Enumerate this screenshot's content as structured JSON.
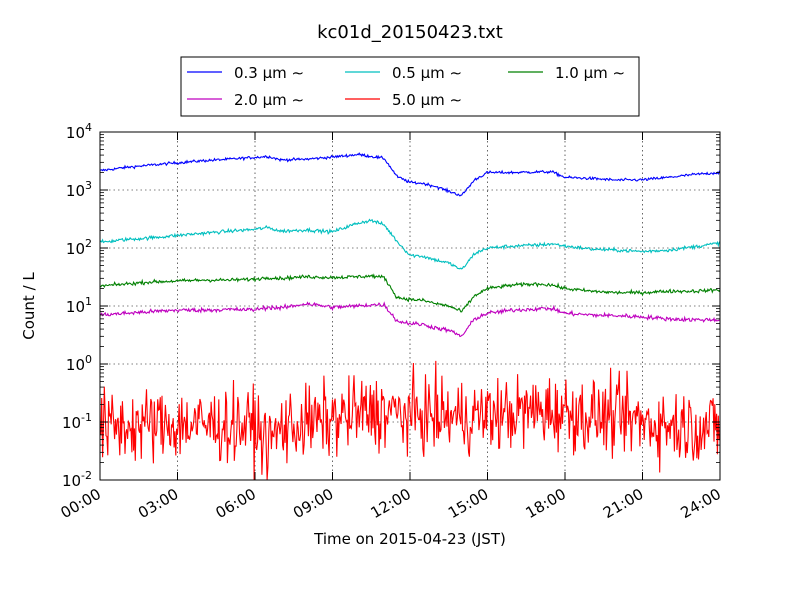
{
  "chart_data": {
    "type": "line",
    "title": "kc01d_20150423.txt",
    "xlabel": "Time on 2015-04-23 (JST)",
    "ylabel": "Count / L",
    "y_scale": "log",
    "ylim": [
      0.01,
      10000
    ],
    "xlim": [
      "00:00",
      "24:00"
    ],
    "grid": true,
    "legend_position": "top-center",
    "x_ticks": [
      "00:00",
      "03:00",
      "06:00",
      "09:00",
      "12:00",
      "15:00",
      "18:00",
      "21:00",
      "24:00"
    ],
    "y_ticks": [
      {
        "base": "10",
        "exp": "-2"
      },
      {
        "base": "10",
        "exp": "-1"
      },
      {
        "base": "10",
        "exp": "0"
      },
      {
        "base": "10",
        "exp": "1"
      },
      {
        "base": "10",
        "exp": "2"
      },
      {
        "base": "10",
        "exp": "3"
      },
      {
        "base": "10",
        "exp": "4"
      }
    ],
    "series": [
      {
        "name": "0.3 μm ∼",
        "color": "#0000ff",
        "noise": 0.012,
        "x": [
          "00:00",
          "01:00",
          "02:00",
          "03:00",
          "04:00",
          "05:00",
          "06:00",
          "06:30",
          "07:00",
          "08:00",
          "09:00",
          "10:00",
          "10:30",
          "11:00",
          "11:30",
          "12:00",
          "12:30",
          "13:00",
          "13:30",
          "14:00",
          "14:30",
          "15:00",
          "16:00",
          "17:00",
          "17:30",
          "18:00",
          "19:00",
          "20:00",
          "21:00",
          "22:00",
          "23:00",
          "24:00"
        ],
        "values": [
          2150,
          2450,
          2700,
          2950,
          3200,
          3400,
          3650,
          3800,
          3300,
          3400,
          3700,
          4100,
          3800,
          3500,
          1700,
          1350,
          1300,
          1150,
          950,
          800,
          1500,
          2000,
          2000,
          2050,
          2050,
          1650,
          1580,
          1480,
          1500,
          1650,
          1850,
          2000
        ]
      },
      {
        "name": "0.5 μm ∼",
        "color": "#00bfbf",
        "noise": 0.015,
        "x": [
          "00:00",
          "01:00",
          "02:00",
          "03:00",
          "04:00",
          "05:00",
          "06:00",
          "06:30",
          "07:00",
          "08:00",
          "09:00",
          "10:00",
          "10:30",
          "11:00",
          "11:30",
          "12:00",
          "12:30",
          "13:00",
          "13:30",
          "14:00",
          "14:30",
          "15:00",
          "16:00",
          "17:00",
          "17:30",
          "18:00",
          "19:00",
          "20:00",
          "21:00",
          "22:00",
          "23:00",
          "24:00"
        ],
        "values": [
          125,
          140,
          150,
          165,
          180,
          195,
          210,
          225,
          195,
          205,
          190,
          270,
          300,
          250,
          130,
          75,
          72,
          62,
          55,
          42,
          80,
          100,
          108,
          113,
          118,
          108,
          96,
          92,
          87,
          92,
          105,
          122
        ]
      },
      {
        "name": "1.0 μm ∼",
        "color": "#008000",
        "noise": 0.015,
        "x": [
          "00:00",
          "01:00",
          "02:00",
          "03:00",
          "04:00",
          "05:00",
          "06:00",
          "06:30",
          "07:00",
          "08:00",
          "09:00",
          "10:00",
          "10:30",
          "11:00",
          "11:30",
          "12:00",
          "12:30",
          "13:00",
          "13:30",
          "14:00",
          "14:30",
          "15:00",
          "16:00",
          "17:00",
          "17:30",
          "18:00",
          "19:00",
          "20:00",
          "21:00",
          "22:00",
          "23:00",
          "24:00"
        ],
        "values": [
          22,
          24,
          26,
          27,
          28,
          28,
          29,
          31,
          30,
          32,
          31,
          32,
          33,
          31,
          14,
          13,
          12.5,
          11,
          10,
          8,
          15,
          20,
          23,
          24,
          23,
          20,
          18,
          17,
          17,
          18,
          18,
          19
        ]
      },
      {
        "name": "2.0 μm ∼",
        "color": "#bf00bf",
        "noise": 0.018,
        "x": [
          "00:00",
          "01:00",
          "02:00",
          "03:00",
          "04:00",
          "05:00",
          "06:00",
          "06:30",
          "07:00",
          "08:00",
          "09:00",
          "10:00",
          "10:30",
          "11:00",
          "11:30",
          "12:00",
          "12:30",
          "13:00",
          "13:30",
          "14:00",
          "14:30",
          "15:00",
          "16:00",
          "17:00",
          "17:30",
          "18:00",
          "19:00",
          "20:00",
          "21:00",
          "22:00",
          "23:00",
          "24:00"
        ],
        "values": [
          7,
          7.5,
          8,
          8.5,
          8.5,
          8.7,
          8.6,
          9.5,
          9.2,
          11,
          9.5,
          10,
          10.5,
          10.5,
          5.5,
          5,
          4.8,
          4.2,
          3.8,
          3,
          6,
          7.5,
          8.5,
          9,
          9,
          7.5,
          7,
          6.8,
          6.5,
          6,
          5.8,
          5.8
        ]
      },
      {
        "name": "5.0 μm ∼",
        "color": "#ff0000",
        "noise": 0.32,
        "x": [
          "00:00",
          "02:00",
          "04:00",
          "06:00",
          "06:30",
          "07:00",
          "09:00",
          "10:00",
          "11:00",
          "12:00",
          "13:00",
          "14:00",
          "15:00",
          "16:00",
          "17:00",
          "18:00",
          "19:00",
          "20:00",
          "21:00",
          "22:00",
          "24:00"
        ],
        "values": [
          0.08,
          0.09,
          0.09,
          0.085,
          0.04,
          0.08,
          0.11,
          0.14,
          0.15,
          0.13,
          0.13,
          0.12,
          0.13,
          0.14,
          0.16,
          0.15,
          0.13,
          0.12,
          0.1,
          0.09,
          0.08
        ]
      }
    ]
  }
}
